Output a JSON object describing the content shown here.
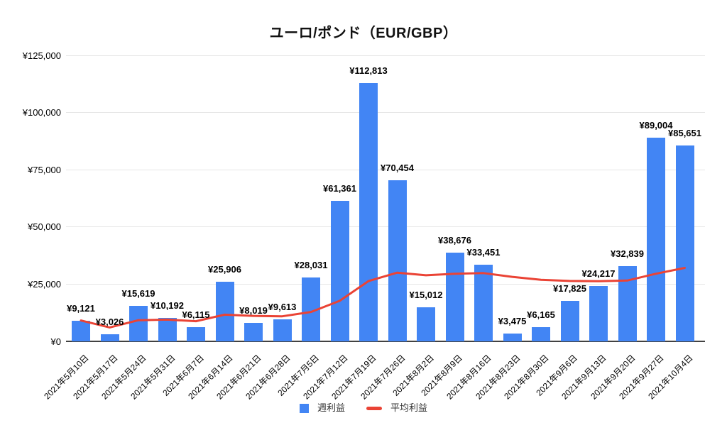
{
  "title": "ユーロ/ポンド（EUR/GBP）",
  "legend": {
    "bar_label": "週利益",
    "line_label": "平均利益"
  },
  "colors": {
    "bar": "#4285F4",
    "line": "#EA4335",
    "grid": "#e6e6e6",
    "axis": "#424242",
    "text": "#000000"
  },
  "y_axis": {
    "tick_labels": [
      "¥0",
      "¥25,000",
      "¥50,000",
      "¥75,000",
      "¥100,000",
      "¥125,000"
    ],
    "tick_values": [
      0,
      25000,
      50000,
      75000,
      100000,
      125000
    ]
  },
  "chart_data": {
    "type": "bar",
    "title": "ユーロ/ポンド（EUR/GBP）",
    "categories": [
      "2021年5月10日",
      "2021年5月17日",
      "2021年5月24日",
      "2021年5月31日",
      "2021年6月7日",
      "2021年6月14日",
      "2021年6月21日",
      "2021年6月28日",
      "2021年7月5日",
      "2021年7月12日",
      "2021年7月19日",
      "2021年7月26日",
      "2021年8月2日",
      "2021年8月9日",
      "2021年8月16日",
      "2021年8月23日",
      "2021年8月30日",
      "2021年9月6日",
      "2021年9月13日",
      "2021年9月20日",
      "2021年9月27日",
      "2021年10月4日"
    ],
    "series": [
      {
        "name": "週利益",
        "type": "bar",
        "color": "#4285F4",
        "values": [
          9121,
          3026,
          15619,
          10192,
          6115,
          25906,
          8019,
          9613,
          28031,
          61361,
          112813,
          70454,
          15012,
          38676,
          33451,
          3475,
          6165,
          17825,
          24217,
          32839,
          89004,
          85651
        ],
        "value_labels": [
          "¥9,121",
          "¥3,026",
          "¥15,619",
          "¥10,192",
          "¥6,115",
          "¥25,906",
          "¥8,019",
          "¥9,613",
          "¥28,031",
          "¥61,361",
          "¥112,813",
          "¥70,454",
          "¥15,012",
          "¥38,676",
          "¥33,451",
          "¥3,475",
          "¥6,165",
          "¥17,825",
          "¥24,217",
          "¥32,839",
          "¥89,004",
          "¥85,651"
        ]
      },
      {
        "name": "平均利益",
        "type": "line",
        "color": "#EA4335",
        "values": [
          9121,
          6074,
          9255,
          9490,
          8815,
          11663,
          11143,
          10951,
          12849,
          17700,
          26347,
          30023,
          28868,
          29568,
          29827,
          28180,
          26885,
          26382,
          26268,
          26597,
          29568,
          32118
        ]
      }
    ],
    "ylim": [
      0,
      125000
    ],
    "grid": true,
    "xlabel": "",
    "ylabel": "",
    "legend_position": "bottom",
    "x_tick_rotation_deg": -45
  }
}
